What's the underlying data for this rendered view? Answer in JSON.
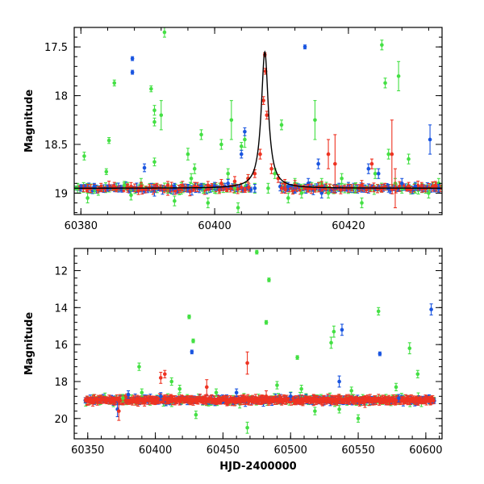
{
  "chart_data": [
    {
      "type": "scatter",
      "panel": "top",
      "ylabel": "Magnitude",
      "xlabel": "",
      "xlim": [
        60379,
        60434
      ],
      "ylim": [
        19.22,
        17.3
      ],
      "x_ticks": [
        60380,
        60400,
        60420
      ],
      "y_ticks": [
        17.5,
        18,
        18.5,
        19
      ],
      "x_tick_labels": [
        "60380",
        "60400",
        "60420"
      ],
      "y_tick_labels": [
        "17.5",
        "18",
        "18.5",
        "19"
      ],
      "model_curve": {
        "color": "black",
        "peak_x": 60407.5,
        "peak_mag": 17.55,
        "baseline_mag": 18.95,
        "width_days": 1.1
      },
      "series": [
        {
          "name": "green",
          "color": "#44e044",
          "points": [
            [
              60379.5,
              18.95,
              0.05
            ],
            [
              60380.5,
              18.62,
              0.04
            ],
            [
              60381,
              19.05,
              0.05
            ],
            [
              60382,
              18.96,
              0.04
            ],
            [
              60383.8,
              18.78,
              0.03
            ],
            [
              60384.2,
              18.46,
              0.03
            ],
            [
              60385,
              17.87,
              0.03
            ],
            [
              60386.5,
              18.92,
              0.04
            ],
            [
              60387.5,
              19.02,
              0.05
            ],
            [
              60389,
              18.9,
              0.05
            ],
            [
              60390.5,
              17.93,
              0.03
            ],
            [
              60391,
              18.15,
              0.05
            ],
            [
              60391,
              18.27,
              0.04
            ],
            [
              60391,
              18.68,
              0.04
            ],
            [
              60392,
              18.2,
              0.15
            ],
            [
              60392.5,
              17.35,
              0.05
            ],
            [
              60393,
              18.95,
              0.05
            ],
            [
              60394,
              19.08,
              0.05
            ],
            [
              60395,
              18.95,
              0.06
            ],
            [
              60396,
              18.6,
              0.06
            ],
            [
              60396.5,
              18.85,
              0.05
            ],
            [
              60397,
              18.75,
              0.05
            ],
            [
              60398,
              18.4,
              0.05
            ],
            [
              60398.3,
              18.95,
              0.05
            ],
            [
              60399,
              19.1,
              0.05
            ],
            [
              60400,
              18.95,
              0.05
            ],
            [
              60401,
              18.5,
              0.05
            ],
            [
              60402,
              18.8,
              0.05
            ],
            [
              60402.5,
              18.25,
              0.2
            ],
            [
              60403,
              18.95,
              0.05
            ],
            [
              60403.5,
              19.15,
              0.05
            ],
            [
              60404,
              18.52,
              0.04
            ],
            [
              60404.5,
              18.45,
              0.08
            ],
            [
              60405,
              18.85,
              0.04
            ],
            [
              60406,
              18.95,
              0.05
            ],
            [
              60408,
              18.95,
              0.05
            ],
            [
              60409,
              18.8,
              0.05
            ],
            [
              60410,
              18.3,
              0.05
            ],
            [
              60411,
              19.05,
              0.05
            ],
            [
              60412,
              18.9,
              0.05
            ],
            [
              60413,
              19.0,
              0.05
            ],
            [
              60415,
              18.25,
              0.2
            ],
            [
              60416,
              18.9,
              0.05
            ],
            [
              60417,
              19.0,
              0.05
            ],
            [
              60419,
              18.85,
              0.05
            ],
            [
              60421,
              18.95,
              0.05
            ],
            [
              60422,
              19.1,
              0.05
            ],
            [
              60424,
              18.8,
              0.05
            ],
            [
              60425,
              17.48,
              0.05
            ],
            [
              60425.5,
              17.87,
              0.05
            ],
            [
              60426,
              18.6,
              0.05
            ],
            [
              60427,
              18.9,
              0.05
            ],
            [
              60427.5,
              17.8,
              0.15
            ],
            [
              60428,
              18.95,
              0.05
            ],
            [
              60429,
              18.65,
              0.05
            ],
            [
              60430,
              18.95,
              0.05
            ],
            [
              60432,
              19.0,
              0.05
            ],
            [
              60433.5,
              18.9,
              0.05
            ]
          ]
        },
        {
          "name": "blue",
          "color": "#1a55e0",
          "points": [
            [
              60380,
              18.95,
              0.03
            ],
            [
              60382,
              18.93,
              0.03
            ],
            [
              60384,
              18.95,
              0.03
            ],
            [
              60386,
              18.95,
              0.03
            ],
            [
              60387.7,
              17.62,
              0.02
            ],
            [
              60387.7,
              17.76,
              0.02
            ],
            [
              60389.5,
              18.74,
              0.04
            ],
            [
              60391,
              18.98,
              0.05
            ],
            [
              60394,
              18.93,
              0.03
            ],
            [
              60396,
              18.95,
              0.04
            ],
            [
              60398,
              18.93,
              0.03
            ],
            [
              60400,
              18.93,
              0.04
            ],
            [
              60402,
              18.9,
              0.04
            ],
            [
              60404,
              18.6,
              0.04
            ],
            [
              60404.5,
              18.37,
              0.04
            ],
            [
              60406,
              18.95,
              0.04
            ],
            [
              60411,
              18.93,
              0.04
            ],
            [
              60412,
              18.95,
              0.04
            ],
            [
              60413.5,
              17.5,
              0.02
            ],
            [
              60414,
              18.9,
              0.05
            ],
            [
              60415.5,
              18.7,
              0.05
            ],
            [
              60416,
              19.0,
              0.05
            ],
            [
              60418,
              18.95,
              0.04
            ],
            [
              60420,
              18.93,
              0.04
            ],
            [
              60422,
              18.95,
              0.04
            ],
            [
              60423,
              18.75,
              0.05
            ],
            [
              60424.5,
              18.8,
              0.05
            ],
            [
              60426,
              18.95,
              0.04
            ],
            [
              60428,
              18.9,
              0.05
            ],
            [
              60430,
              18.93,
              0.04
            ],
            [
              60431,
              18.95,
              0.04
            ],
            [
              60432.2,
              18.45,
              0.15
            ],
            [
              60433.5,
              18.95,
              0.04
            ]
          ]
        },
        {
          "name": "red",
          "color": "#ee3322",
          "points": [
            [
              60381,
              18.95,
              0.04
            ],
            [
              60383,
              18.94,
              0.04
            ],
            [
              60385,
              18.93,
              0.04
            ],
            [
              60387,
              18.95,
              0.04
            ],
            [
              60389,
              18.93,
              0.04
            ],
            [
              60391,
              18.95,
              0.04
            ],
            [
              60393,
              18.92,
              0.04
            ],
            [
              60395,
              18.95,
              0.04
            ],
            [
              60397,
              18.93,
              0.04
            ],
            [
              60399,
              18.92,
              0.04
            ],
            [
              60401,
              18.9,
              0.04
            ],
            [
              60403,
              18.88,
              0.05
            ],
            [
              60405,
              18.85,
              0.04
            ],
            [
              60406,
              18.8,
              0.04
            ],
            [
              60406.8,
              18.6,
              0.05
            ],
            [
              60407.3,
              18.05,
              0.04
            ],
            [
              60407.5,
              17.58,
              0.02
            ],
            [
              60407.6,
              17.75,
              0.03
            ],
            [
              60407.8,
              18.2,
              0.04
            ],
            [
              60408.5,
              18.75,
              0.05
            ],
            [
              60409.5,
              18.85,
              0.04
            ],
            [
              60410.5,
              18.9,
              0.04
            ],
            [
              60412,
              18.92,
              0.05
            ],
            [
              60414,
              18.95,
              0.04
            ],
            [
              60416,
              18.93,
              0.05
            ],
            [
              60417,
              18.6,
              0.15
            ],
            [
              60418,
              18.7,
              0.3
            ],
            [
              60420,
              18.95,
              0.04
            ],
            [
              60422,
              18.92,
              0.05
            ],
            [
              60423.5,
              18.7,
              0.05
            ],
            [
              60425,
              18.95,
              0.04
            ],
            [
              60426.5,
              18.6,
              0.35
            ],
            [
              60427,
              18.95,
              0.2
            ],
            [
              60429,
              18.93,
              0.04
            ],
            [
              60431,
              18.95,
              0.04
            ],
            [
              60433,
              18.92,
              0.04
            ]
          ]
        }
      ]
    },
    {
      "type": "scatter",
      "panel": "bottom",
      "ylabel": "Magnitude",
      "xlabel": "HJD-2400000",
      "xlim": [
        60340,
        60612
      ],
      "ylim": [
        21.1,
        10.8
      ],
      "x_ticks": [
        60350,
        60400,
        60450,
        60500,
        60550,
        60600
      ],
      "y_ticks": [
        12,
        14,
        16,
        18,
        20
      ],
      "x_tick_labels": [
        "60350",
        "60400",
        "60450",
        "60500",
        "60550",
        "60600"
      ],
      "y_tick_labels": [
        "12",
        "14",
        "16",
        "18",
        "20"
      ],
      "series": [
        {
          "name": "green",
          "color": "#44e044",
          "points": [
            [
              60376,
              18.9,
              0.2
            ],
            [
              60388,
              17.2,
              0.2
            ],
            [
              60390,
              18.6,
              0.2
            ],
            [
              60412,
              18.0,
              0.2
            ],
            [
              60418,
              18.4,
              0.2
            ],
            [
              60425,
              14.5,
              0.1
            ],
            [
              60428,
              15.8,
              0.1
            ],
            [
              60430,
              19.8,
              0.2
            ],
            [
              60445,
              18.6,
              0.2
            ],
            [
              60468,
              20.5,
              0.3
            ],
            [
              60475,
              11.0,
              0.1
            ],
            [
              60482,
              14.8,
              0.1
            ],
            [
              60484,
              12.5,
              0.1
            ],
            [
              60490,
              18.2,
              0.2
            ],
            [
              60505,
              16.7,
              0.1
            ],
            [
              60508,
              18.4,
              0.2
            ],
            [
              60518,
              19.6,
              0.2
            ],
            [
              60530,
              15.9,
              0.3
            ],
            [
              60532,
              15.3,
              0.3
            ],
            [
              60536,
              19.5,
              0.2
            ],
            [
              60545,
              18.5,
              0.2
            ],
            [
              60550,
              20.0,
              0.2
            ],
            [
              60565,
              14.2,
              0.2
            ],
            [
              60578,
              18.3,
              0.2
            ],
            [
              60588,
              16.2,
              0.3
            ],
            [
              60594,
              17.6,
              0.2
            ]
          ]
        },
        {
          "name": "blue",
          "color": "#1a55e0",
          "points": [
            [
              60372,
              19.5,
              0.4
            ],
            [
              60380,
              18.7,
              0.2
            ],
            [
              60404,
              18.8,
              0.2
            ],
            [
              60427,
              16.4,
              0.1
            ],
            [
              60460,
              18.6,
              0.2
            ],
            [
              60500,
              18.8,
              0.2
            ],
            [
              60536,
              18.0,
              0.3
            ],
            [
              60538,
              15.2,
              0.3
            ],
            [
              60566,
              16.5,
              0.1
            ],
            [
              60580,
              18.9,
              0.2
            ],
            [
              60604,
              14.1,
              0.3
            ]
          ]
        },
        {
          "name": "red",
          "color": "#ee3322",
          "points": [
            [
              60373,
              19.6,
              0.5
            ],
            [
              60404,
              17.8,
              0.3
            ],
            [
              60407,
              17.6,
              0.2
            ],
            [
              60438,
              18.3,
              0.4
            ],
            [
              60468,
              17.0,
              0.6
            ],
            [
              60482,
              18.8,
              0.3
            ],
            [
              60517,
              19.0,
              0.3
            ],
            [
              60555,
              19.1,
              0.3
            ]
          ]
        }
      ],
      "baseline_band": {
        "x_start": 60348,
        "x_end": 60606,
        "mag": 19.0,
        "scatter": 0.18
      }
    }
  ]
}
